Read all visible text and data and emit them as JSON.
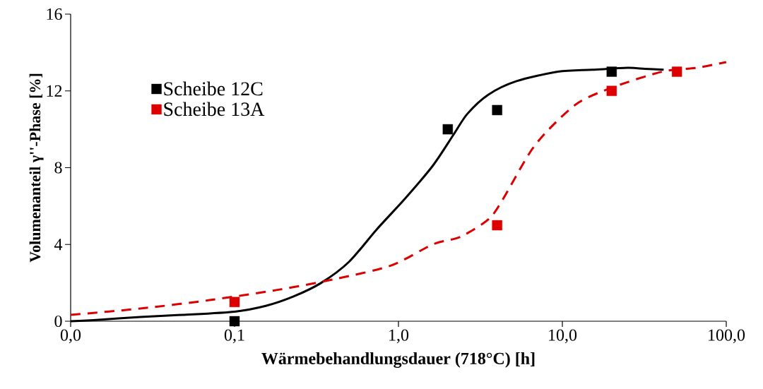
{
  "chart_data": {
    "type": "scatter",
    "xlabel": "Wärmebehandlungsdauer (718°C) [h]",
    "ylabel": "Volumenanteil γ''-Phase [%]",
    "log": "x",
    "xlim": [
      0.01,
      100
    ],
    "ylim": [
      0,
      16
    ],
    "xticks": [
      {
        "value": 0.01,
        "label": "0,0"
      },
      {
        "value": 0.1,
        "label": "0,1"
      },
      {
        "value": 1,
        "label": "1,0"
      },
      {
        "value": 10,
        "label": "10,0"
      },
      {
        "value": 100,
        "label": "100,0"
      }
    ],
    "yticks": [
      0,
      4,
      8,
      12,
      16
    ],
    "grid": false,
    "legend": "top left",
    "series": [
      {
        "name": "Scheibe 12C",
        "marker": "square",
        "color": "#000000",
        "x": [
          0.1,
          2,
          4,
          20
        ],
        "values": [
          0,
          10,
          11,
          13
        ]
      },
      {
        "name": "Scheibe 13A",
        "marker": "square",
        "color": "#dd0000",
        "x": [
          0.1,
          4,
          20,
          50
        ],
        "values": [
          1,
          5,
          12,
          13
        ]
      },
      {
        "type": "line",
        "marker": "none",
        "line_style": "solid",
        "color": "#000000",
        "x": [
          0.01,
          0.0148,
          0.0266,
          0.0478,
          0.1,
          0.155,
          0.229,
          0.338,
          0.5,
          0.74,
          1.1,
          1.62,
          2.16,
          2.63,
          3.53,
          5.22,
          9.4,
          15.3,
          25,
          31.8,
          41.5
        ],
        "values": [
          0.0,
          0.07,
          0.22,
          0.33,
          0.5,
          0.8,
          1.29,
          2.0,
          3.1,
          4.8,
          6.4,
          8.1,
          9.7,
          10.8,
          11.8,
          12.5,
          13.0,
          13.1,
          13.2,
          13.15,
          13.1
        ]
      },
      {
        "type": "line",
        "marker": "none",
        "line_style": "dashed",
        "color": "#dd0000",
        "x": [
          0.01,
          0.0266,
          0.0706,
          0.188,
          0.411,
          0.9,
          1.62,
          2.39,
          3.53,
          4.3,
          6.35,
          8.5,
          12.6,
          20.5,
          40.6,
          66,
          100
        ],
        "values": [
          0.33,
          0.66,
          1.1,
          1.65,
          2.2,
          2.9,
          4.0,
          4.4,
          5.3,
          6.3,
          8.8,
          10.1,
          11.4,
          12.2,
          13.0,
          13.2,
          13.5
        ]
      }
    ]
  }
}
